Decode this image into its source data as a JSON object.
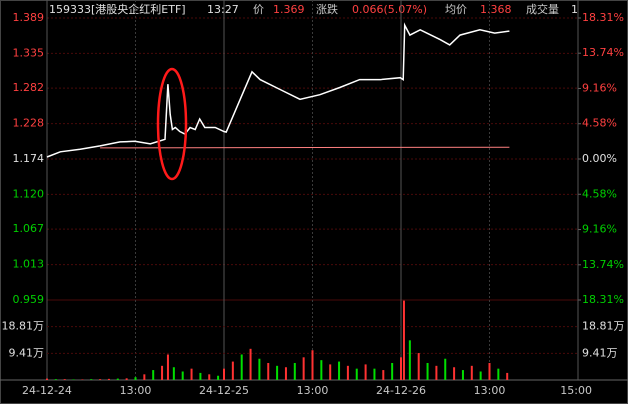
{
  "header": {
    "code": "159333[港股央企红利ETF]",
    "time": "13:27",
    "price_label": "价",
    "price": "1.369",
    "change_label": "涨跌",
    "change": "0.066(5.07%)",
    "avg_label": "均价",
    "avg": "1.368",
    "volume_label": "成交量",
    "volume": "1"
  },
  "chart_data": {
    "type": "line",
    "xlim": [
      0,
      720
    ],
    "xticks": [
      {
        "value": 0,
        "label": "24-12-24"
      },
      {
        "value": 120,
        "label": "13:00"
      },
      {
        "value": 240,
        "label": "24-12-25"
      },
      {
        "value": 360,
        "label": "13:00"
      },
      {
        "value": 480,
        "label": "24-12-26"
      },
      {
        "value": 600,
        "label": "13:00"
      },
      {
        "value": 720,
        "label": "15:00"
      }
    ],
    "ylim": [
      0.959,
      1.389
    ],
    "yticks": [
      1.389,
      1.335,
      1.282,
      1.228,
      1.174,
      {
        "value": 1.12,
        "label": "1.120"
      },
      1.067,
      1.013,
      0.959
    ],
    "y2lim": [
      -18.31,
      18.31
    ],
    "y2ticks": [
      {
        "value": 18.31,
        "label": "18.31%"
      },
      {
        "value": 13.74,
        "label": "13.74%"
      },
      {
        "value": 9.16,
        "label": "9.16%"
      },
      {
        "value": 4.58,
        "label": "4.58%"
      },
      {
        "value": 0,
        "label": "0.00%"
      },
      {
        "value": -4.58,
        "label": "4.58%"
      },
      {
        "value": -9.16,
        "label": "9.16%"
      },
      {
        "value": -13.74,
        "label": "13.74%"
      },
      {
        "value": -18.31,
        "label": "18.31%"
      }
    ],
    "series": [
      {
        "color": "#ffffff",
        "x": [
          0,
          18,
          45,
          72,
          99,
          119,
          140,
          160,
          164,
          167,
          170,
          174,
          180,
          187,
          194,
          201,
          207,
          214,
          228,
          240,
          243,
          262,
          278,
          289,
          316,
          343,
          370,
          397,
          424,
          452,
          479,
          483,
          485,
          492,
          506,
          533,
          546,
          560,
          587,
          607,
          627
        ],
        "values": [
          1.177,
          1.185,
          1.189,
          1.194,
          1.2,
          1.201,
          1.197,
          1.204,
          1.288,
          1.242,
          1.219,
          1.222,
          1.216,
          1.212,
          1.222,
          1.219,
          1.235,
          1.222,
          1.222,
          1.216,
          1.215,
          1.265,
          1.307,
          1.295,
          1.28,
          1.265,
          1.272,
          1.283,
          1.295,
          1.295,
          1.298,
          1.295,
          1.378,
          1.363,
          1.371,
          1.356,
          1.348,
          1.363,
          1.371,
          1.366,
          1.369
        ]
      },
      {
        "color": "#ff8080",
        "x": [
          72,
          627
        ],
        "values": [
          1.191,
          1.192
        ]
      }
    ],
    "volume": {
      "ylim": [
        0,
        28.22
      ],
      "yticks": [
        {
          "value": 18.81,
          "label": "18.81万"
        },
        {
          "value": 9.41,
          "label": "9.41万"
        }
      ],
      "x": [
        0,
        12,
        24,
        36,
        48,
        60,
        72,
        84,
        96,
        108,
        120,
        132,
        144,
        156,
        164,
        172,
        184,
        196,
        208,
        220,
        232,
        240,
        252,
        264,
        276,
        288,
        300,
        312,
        324,
        336,
        348,
        360,
        372,
        384,
        396,
        408,
        420,
        432,
        444,
        456,
        468,
        480,
        484,
        492,
        504,
        516,
        528,
        540,
        552,
        564,
        576,
        588,
        600,
        612,
        624
      ],
      "values": [
        0.5,
        0.3,
        0.3,
        0.2,
        0.2,
        0.3,
        0.3,
        0.4,
        0.5,
        0.6,
        1.0,
        2.0,
        3.5,
        5.0,
        9.0,
        4.5,
        3.0,
        4.0,
        2.5,
        2.0,
        1.5,
        4.0,
        6.5,
        9.0,
        11.0,
        7.5,
        6.0,
        5.0,
        4.5,
        6.0,
        8.0,
        10.5,
        7.0,
        5.5,
        6.5,
        5.0,
        4.0,
        5.5,
        4.0,
        3.5,
        6.0,
        8.0,
        28.0,
        14.0,
        9.5,
        6.0,
        5.0,
        7.5,
        4.5,
        3.5,
        5.0,
        3.0,
        6.0,
        4.0,
        2.5
      ],
      "colors": [
        "#ff3232",
        "#00e000",
        "#ff3232",
        "#00e000",
        "#ff3232",
        "#00e000",
        "#ff3232",
        "#ff3232",
        "#00e000",
        "#ff3232",
        "#00e000",
        "#ff3232",
        "#00e000",
        "#ff3232",
        "#ff3232",
        "#00e000",
        "#00e000",
        "#ff3232",
        "#00e000",
        "#ff3232",
        "#00e000",
        "#ff3232",
        "#ff3232",
        "#00e000",
        "#ff3232",
        "#00e000",
        "#ff3232",
        "#00e000",
        "#ff3232",
        "#00e000",
        "#ff3232",
        "#ff3232",
        "#00e000",
        "#ff3232",
        "#00e000",
        "#ff3232",
        "#00e000",
        "#ff3232",
        "#00e000",
        "#ff3232",
        "#00e000",
        "#ff3232",
        "#ff3232",
        "#00e000",
        "#ff3232",
        "#00e000",
        "#ff3232",
        "#00e000",
        "#ff3232",
        "#00e000",
        "#ff3232",
        "#00e000",
        "#ff3232",
        "#00e000",
        "#ff3232"
      ]
    }
  }
}
